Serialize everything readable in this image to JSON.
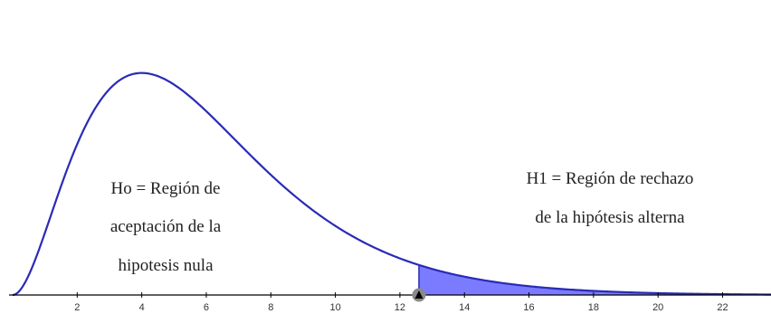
{
  "chart_data": {
    "type": "area",
    "distribution": "chi-square",
    "degrees_of_freedom": 6,
    "xlim": [
      0,
      23.5
    ],
    "ylim": [
      0,
      0.155
    ],
    "x_ticks": [
      "2",
      "4",
      "6",
      "8",
      "10",
      "12",
      "14",
      "16",
      "18",
      "20",
      "22"
    ],
    "critical_value": 12.59,
    "curve_color": "#2a2ab8",
    "shade_color": "#7b7bff",
    "marker_color": "#8a8a8a",
    "annotations": {
      "h0": [
        "Ho = Región de",
        "aceptación de la",
        "hipotesis nula"
      ],
      "h1": [
        "H1 = Región de rechazo",
        "de la hipótesis alterna"
      ]
    }
  }
}
